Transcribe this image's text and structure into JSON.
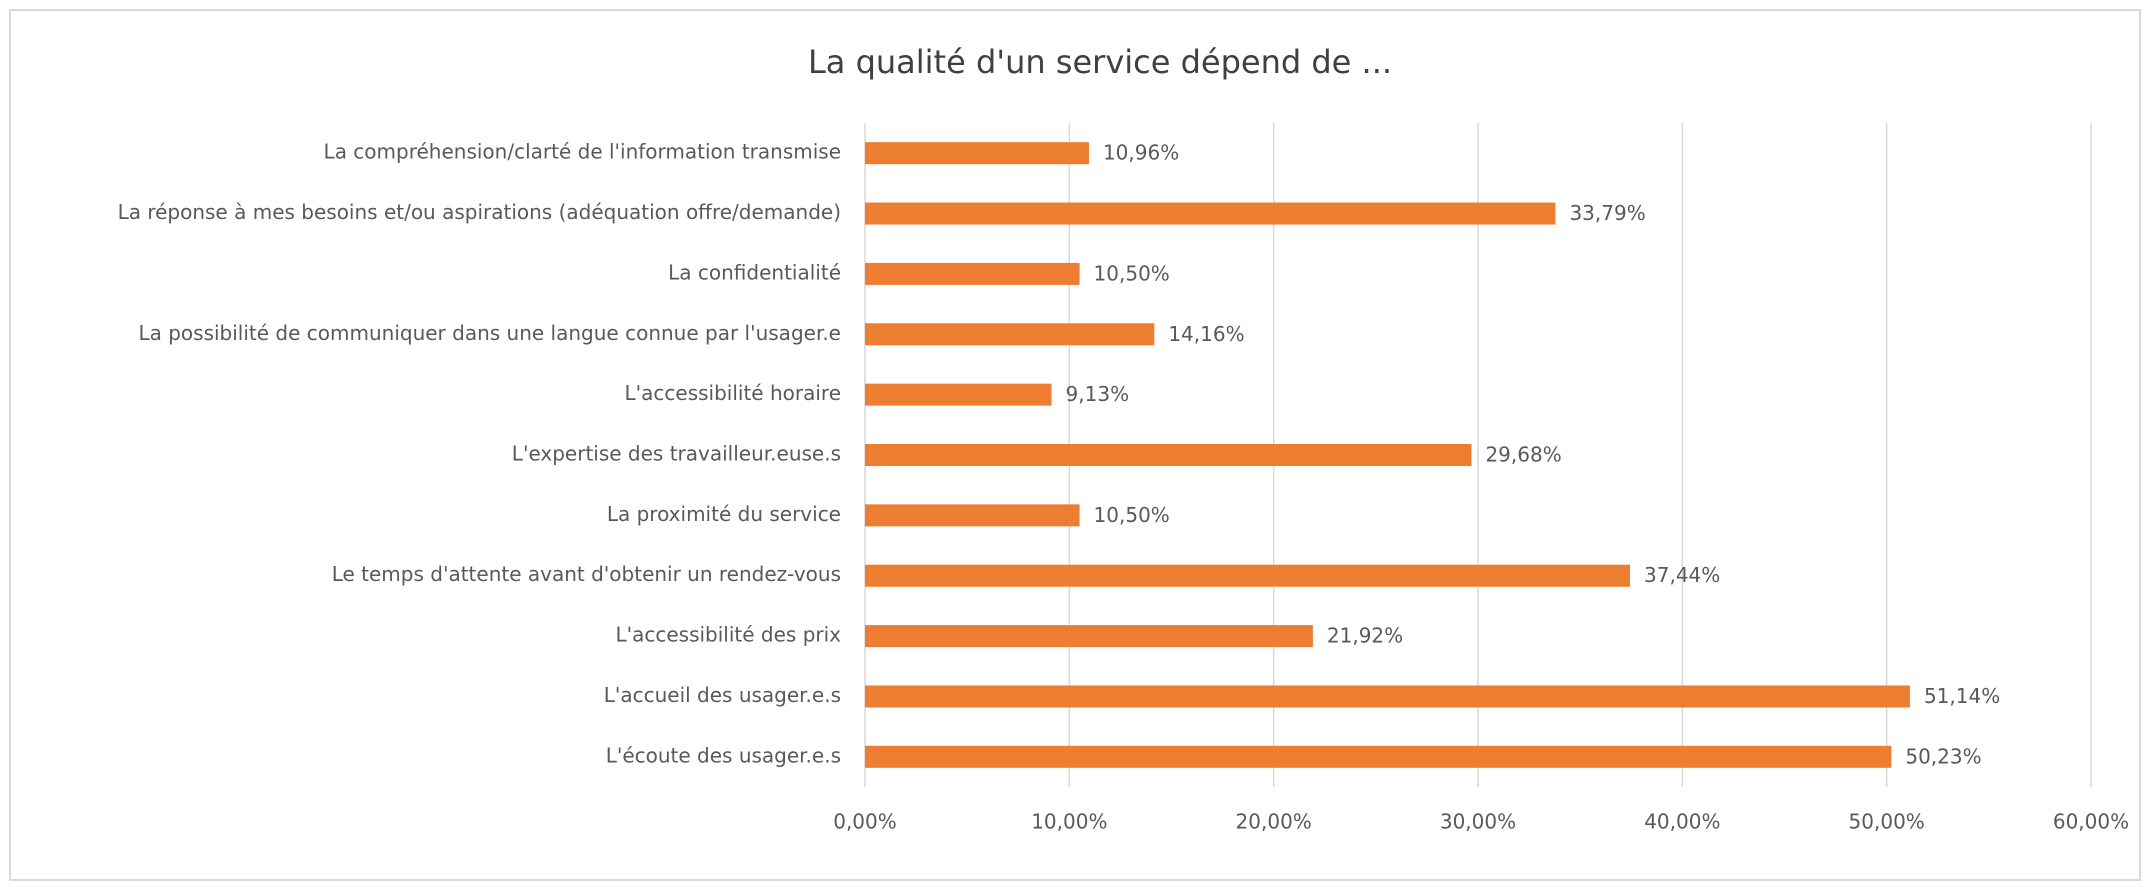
{
  "chart_data": {
    "type": "bar",
    "orientation": "horizontal",
    "title": "La qualité d'un service dépend de ...",
    "categories": [
      "La compréhension/clarté de l'information transmise",
      "La réponse à mes besoins et/ou aspirations (adéquation offre/demande)",
      "La confidentialité",
      "La possibilité de communiquer dans une langue connue par l'usager.e",
      "L'accessibilité horaire",
      "L'expertise des travailleur.euse.s",
      "La proximité du service",
      "Le temps d'attente avant d'obtenir un rendez-vous",
      "L'accessibilité des prix",
      "L'accueil des usager.e.s",
      "L'écoute des usager.e.s"
    ],
    "values": [
      10.96,
      33.79,
      10.5,
      14.16,
      9.13,
      29.68,
      10.5,
      37.44,
      21.92,
      51.14,
      50.23
    ],
    "value_labels": [
      "10,96%",
      "33,79%",
      "10,50%",
      "14,16%",
      "9,13%",
      "29,68%",
      "10,50%",
      "37,44%",
      "21,92%",
      "51,14%",
      "50,23%"
    ],
    "color": "#ed7d31",
    "xlim": [
      0,
      60
    ],
    "xticks": [
      {
        "value": 0,
        "label": "0,00%"
      },
      {
        "value": 10,
        "label": "10,00%"
      },
      {
        "value": 20,
        "label": "20,00%"
      },
      {
        "value": 30,
        "label": "30,00%"
      },
      {
        "value": 40,
        "label": "40,00%"
      },
      {
        "value": 50,
        "label": "50,00%"
      },
      {
        "value": 60,
        "label": "60,00%"
      }
    ],
    "grid": true
  }
}
